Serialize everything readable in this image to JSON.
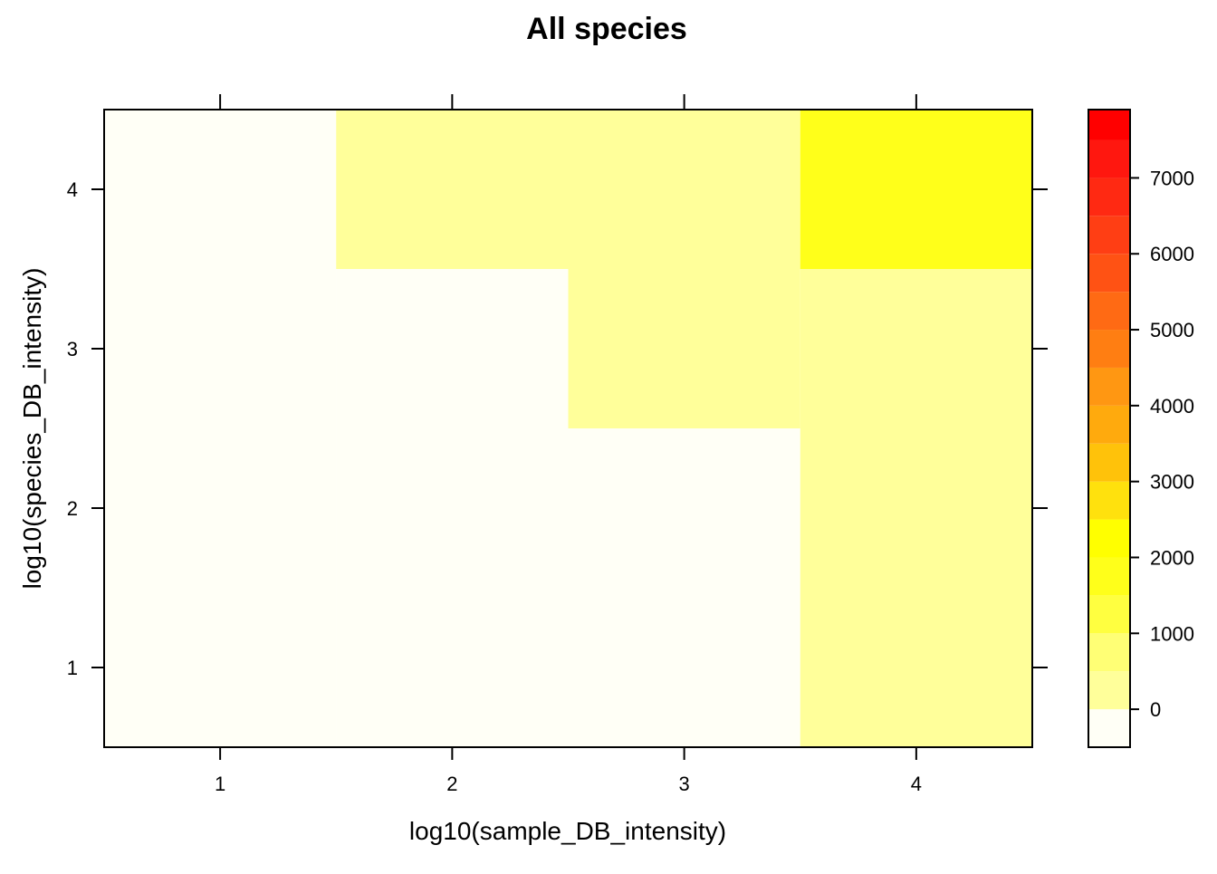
{
  "chart_data": {
    "type": "heatmap",
    "title": "All species",
    "xlabel": "log10(sample_DB_intensity)",
    "ylabel": "log10(species_DB_intensity)",
    "x_categories": [
      "1",
      "2",
      "3",
      "4"
    ],
    "y_categories": [
      "1",
      "2",
      "3",
      "4"
    ],
    "xlim": [
      0.5,
      4.5
    ],
    "ylim": [
      0.5,
      4.5
    ],
    "cells": [
      {
        "x": 1,
        "y": 1,
        "value": -200
      },
      {
        "x": 2,
        "y": 1,
        "value": -200
      },
      {
        "x": 3,
        "y": 1,
        "value": -200
      },
      {
        "x": 4,
        "y": 1,
        "value": 300
      },
      {
        "x": 1,
        "y": 2,
        "value": -200
      },
      {
        "x": 2,
        "y": 2,
        "value": -200
      },
      {
        "x": 3,
        "y": 2,
        "value": -200
      },
      {
        "x": 4,
        "y": 2,
        "value": 300
      },
      {
        "x": 1,
        "y": 3,
        "value": -200
      },
      {
        "x": 2,
        "y": 3,
        "value": -200
      },
      {
        "x": 3,
        "y": 3,
        "value": 300
      },
      {
        "x": 4,
        "y": 3,
        "value": 300
      },
      {
        "x": 1,
        "y": 4,
        "value": -200
      },
      {
        "x": 2,
        "y": 4,
        "value": 300
      },
      {
        "x": 3,
        "y": 4,
        "value": 300
      },
      {
        "x": 4,
        "y": 4,
        "value": 2000
      }
    ],
    "colorbar": {
      "range": [
        -500,
        7900
      ],
      "ticks": [
        "0",
        "1000",
        "2000",
        "3000",
        "4000",
        "5000",
        "6000",
        "7000"
      ],
      "tick_values": [
        0,
        1000,
        2000,
        3000,
        4000,
        5000,
        6000,
        7000
      ],
      "breaks": [
        -500,
        0,
        500,
        1000,
        1500,
        2000,
        2500,
        3000,
        3500,
        4000,
        4500,
        5000,
        5500,
        6000,
        6500,
        7000,
        7500,
        7900
      ],
      "colors": [
        "#FFFFF6",
        "#FFFF9A",
        "#FFFF75",
        "#FFFF40",
        "#FFFF1A",
        "#FFFF00",
        "#FFE10D",
        "#FFC20A",
        "#FFAA0D",
        "#FF9712",
        "#FF7E12",
        "#FF6A14",
        "#FF5214",
        "#FF3E14",
        "#FF2912",
        "#FF170F",
        "#FF0000"
      ],
      "cell_colors": {
        "-200": "#FFFFF6",
        "300": "#FFFF9A",
        "2000": "#FFFF00"
      }
    }
  }
}
